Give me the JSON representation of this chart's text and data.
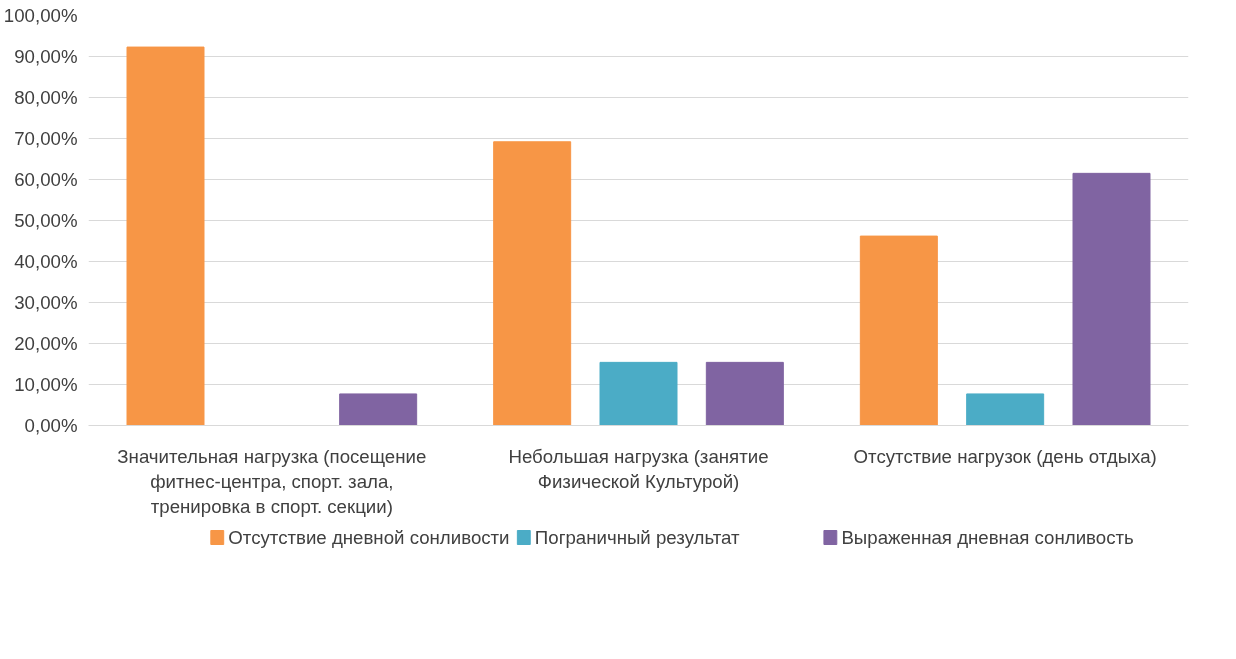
{
  "chart_data": {
    "type": "bar",
    "categories": [
      "Значительная нагрузка (посещение фитнес-центра, спорт. зала, тренировка в спорт. секции)",
      "Небольшая нагрузка (занятие Физической Культурой)",
      "Отсутствие нагрузок (день отдыха)"
    ],
    "series": [
      {
        "name": "Отсутствие дневной сонливости",
        "color": "#f79646",
        "values": [
          92.3,
          69.2,
          46.2
        ]
      },
      {
        "name": "Пограничный результат",
        "color": "#4bacc6",
        "values": [
          null,
          15.4,
          7.7
        ]
      },
      {
        "name": "Выраженная дневная сонливость",
        "color": "#8064a2",
        "values": [
          7.7,
          15.4,
          61.5
        ]
      }
    ],
    "ylim": [
      0,
      100
    ],
    "yticks": [
      {
        "value": 0,
        "label": "0,00%"
      },
      {
        "value": 10,
        "label": "10,00%"
      },
      {
        "value": 20,
        "label": "20,00%"
      },
      {
        "value": 30,
        "label": "30,00%"
      },
      {
        "value": 40,
        "label": "40,00%"
      },
      {
        "value": 50,
        "label": "50,00%"
      },
      {
        "value": 60,
        "label": "60,00%"
      },
      {
        "value": 70,
        "label": "70,00%"
      },
      {
        "value": 80,
        "label": "80,00%"
      },
      {
        "value": 90,
        "label": "90,00%"
      },
      {
        "value": 100,
        "label": "100,00%"
      }
    ],
    "grid": "y",
    "legend": "bottom"
  }
}
